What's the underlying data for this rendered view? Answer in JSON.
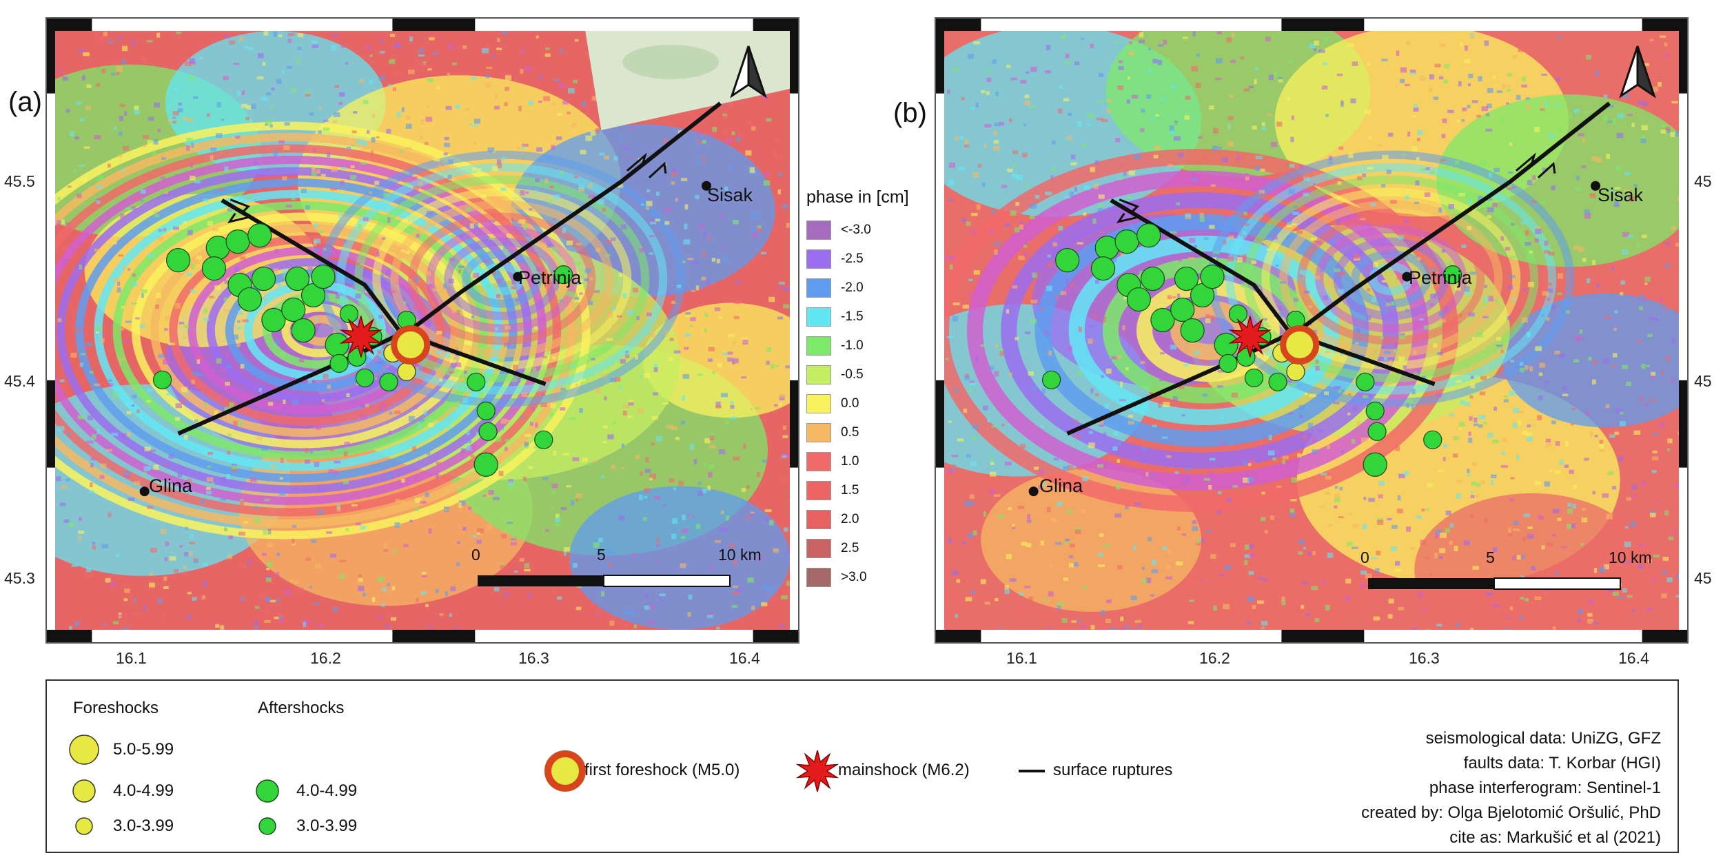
{
  "panels": [
    {
      "letter": "(a)",
      "variant": "a"
    },
    {
      "letter": "(b)",
      "variant": "b"
    }
  ],
  "axes": {
    "lat_ticks": [
      "45.5",
      "45.4",
      "45.3"
    ],
    "lon_ticks": [
      "16.1",
      "16.2",
      "16.3",
      "16.4"
    ],
    "lat_range": [
      45.27,
      45.56
    ],
    "lon_range": [
      16.05,
      16.42
    ]
  },
  "cities": [
    {
      "name": "Sisak",
      "lat": 45.485,
      "lon": 16.378
    },
    {
      "name": "Petrinja",
      "lat": 45.441,
      "lon": 16.283
    },
    {
      "name": "Glina",
      "lat": 45.337,
      "lon": 16.095
    }
  ],
  "scale_bar": {
    "labels": [
      "0",
      "5",
      "10 km"
    ],
    "length_km": 10
  },
  "phase_legend": {
    "title": "phase in [cm]",
    "entries": [
      {
        "label": "<-3.0",
        "color": "#a56bbf"
      },
      {
        "label": "-2.5",
        "color": "#9b6df0"
      },
      {
        "label": "-2.0",
        "color": "#5f9cf0"
      },
      {
        "label": "-1.5",
        "color": "#63e6f4"
      },
      {
        "label": "-1.0",
        "color": "#7ee86a"
      },
      {
        "label": "-0.5",
        "color": "#c6ee63"
      },
      {
        "label": "0.0",
        "color": "#f9f25e"
      },
      {
        "label": "0.5",
        "color": "#f6b863"
      },
      {
        "label": "1.0",
        "color": "#f06a6a"
      },
      {
        "label": "1.5",
        "color": "#ee6465"
      },
      {
        "label": "2.0",
        "color": "#e66262"
      },
      {
        "label": "2.5",
        "color": "#c96363"
      },
      {
        "label": ">3.0",
        "color": "#a76868"
      }
    ]
  },
  "events": {
    "aftershocks": [
      {
        "lat": 45.449,
        "lon": 16.112,
        "m": 4.5
      },
      {
        "lat": 45.455,
        "lon": 16.132,
        "m": 4.6
      },
      {
        "lat": 45.458,
        "lon": 16.142,
        "m": 4.2
      },
      {
        "lat": 45.461,
        "lon": 16.153,
        "m": 4.1
      },
      {
        "lat": 45.445,
        "lon": 16.13,
        "m": 4.7
      },
      {
        "lat": 45.437,
        "lon": 16.143,
        "m": 4.4
      },
      {
        "lat": 45.44,
        "lon": 16.155,
        "m": 4.3
      },
      {
        "lat": 45.43,
        "lon": 16.148,
        "m": 4.8
      },
      {
        "lat": 45.42,
        "lon": 16.16,
        "m": 4.9
      },
      {
        "lat": 45.44,
        "lon": 16.172,
        "m": 4.5
      },
      {
        "lat": 45.432,
        "lon": 16.18,
        "m": 4.6
      },
      {
        "lat": 45.441,
        "lon": 16.185,
        "m": 4.4
      },
      {
        "lat": 45.425,
        "lon": 16.17,
        "m": 4.7
      },
      {
        "lat": 45.415,
        "lon": 16.175,
        "m": 4.8
      },
      {
        "lat": 45.408,
        "lon": 16.192,
        "m": 4.2
      },
      {
        "lat": 45.423,
        "lon": 16.198,
        "m": 3.7
      },
      {
        "lat": 45.402,
        "lon": 16.202,
        "m": 3.5
      },
      {
        "lat": 45.399,
        "lon": 16.193,
        "m": 3.8
      },
      {
        "lat": 45.392,
        "lon": 16.206,
        "m": 3.6
      },
      {
        "lat": 45.39,
        "lon": 16.218,
        "m": 3.4
      },
      {
        "lat": 45.42,
        "lon": 16.227,
        "m": 3.6
      },
      {
        "lat": 45.39,
        "lon": 16.262,
        "m": 3.5
      },
      {
        "lat": 45.376,
        "lon": 16.267,
        "m": 3.6
      },
      {
        "lat": 45.366,
        "lon": 16.268,
        "m": 3.4
      },
      {
        "lat": 45.35,
        "lon": 16.267,
        "m": 4.0
      },
      {
        "lat": 45.362,
        "lon": 16.296,
        "m": 3.5
      },
      {
        "lat": 45.442,
        "lon": 16.306,
        "m": 3.6
      },
      {
        "lat": 45.391,
        "lon": 16.104,
        "m": 3.8
      },
      {
        "lat": 45.412,
        "lon": 16.21,
        "m": 3.8
      }
    ],
    "foreshocks": [
      {
        "lat": 45.404,
        "lon": 16.22,
        "m": 3.8
      },
      {
        "lat": 45.395,
        "lon": 16.227,
        "m": 3.6
      }
    ],
    "first_foreshock": {
      "lat": 45.408,
      "lon": 16.229,
      "m": 5.0
    },
    "mainshock": {
      "lat": 45.412,
      "lon": 16.204,
      "m": 6.2
    }
  },
  "faults": [
    [
      [
        16.134,
        45.478
      ],
      [
        16.206,
        45.437
      ],
      [
        16.224,
        45.414
      ],
      [
        16.297,
        45.389
      ]
    ],
    [
      [
        16.112,
        45.365
      ],
      [
        16.19,
        45.398
      ],
      [
        16.23,
        45.416
      ],
      [
        16.255,
        45.434
      ],
      [
        16.335,
        45.487
      ],
      [
        16.385,
        45.525
      ]
    ]
  ],
  "colors": {
    "aftershock": "#33d63a",
    "foreshock": "#e7e843",
    "foreshock_ring": "#d6451c",
    "mainshock": "#e31b1b",
    "fault": "#111111"
  },
  "legend": {
    "foreshocks_title": "Foreshocks",
    "aftershocks_title": "Aftershocks",
    "foreshock_classes": [
      "5.0-5.99",
      "4.0-4.99",
      "3.0-3.99"
    ],
    "aftershock_classes": [
      "4.0-4.99",
      "3.0-3.99"
    ],
    "first_foreshock_label": "first foreshock (M5.0)",
    "mainshock_label": "mainshock (M6.2)",
    "surface_ruptures_label": "surface ruptures",
    "credits": [
      "seismological data: UniZG, GFZ",
      "faults data: T. Korbar (HGI)",
      "phase interferogram: Sentinel-1",
      "created by: Olga Bjelotomić Oršulić, PhD",
      "cite as: Markušić et al (2021)"
    ]
  }
}
